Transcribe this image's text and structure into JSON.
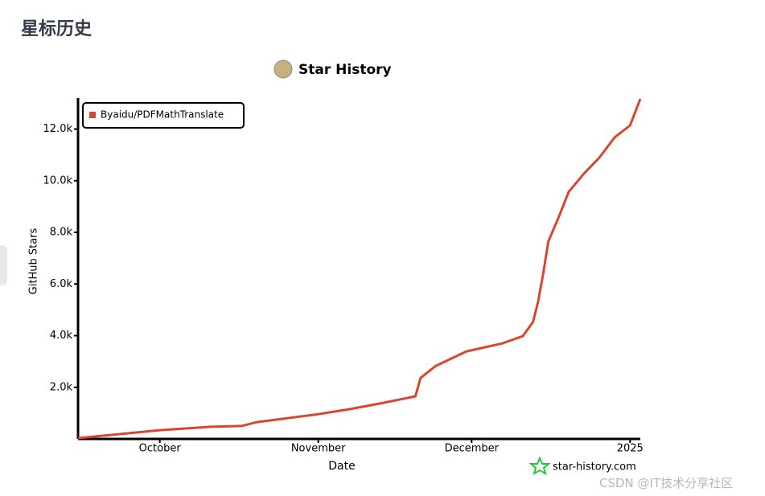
{
  "page_title": "星标历史",
  "watermark": "CSDN @IT技术分享社区",
  "chart_data": {
    "type": "line",
    "title": "Star History",
    "xlabel": "Date",
    "ylabel": "GitHub Stars",
    "credit": "star-history.com",
    "x": [
      "2024-09-15",
      "2024-10-01",
      "2024-10-11",
      "2024-10-17",
      "2024-10-20",
      "2024-11-01",
      "2024-11-07",
      "2024-11-13",
      "2024-11-20",
      "2024-11-21",
      "2024-11-24",
      "2024-11-30",
      "2024-12-07",
      "2024-12-11",
      "2024-12-13",
      "2024-12-14",
      "2024-12-15",
      "2024-12-16",
      "2024-12-18",
      "2024-12-20",
      "2024-12-23",
      "2024-12-26",
      "2024-12-29",
      "2025-01-01",
      "2025-01-03"
    ],
    "series": [
      {
        "name": "Byaidu/PDFMathTranslate",
        "color": "#d9462d",
        "values": [
          30,
          340,
          470,
          500,
          650,
          960,
          1150,
          1370,
          1650,
          2360,
          2830,
          3390,
          3700,
          3980,
          4530,
          5310,
          6400,
          7640,
          8570,
          9570,
          10280,
          10900,
          11680,
          12140,
          13170
        ]
      }
    ],
    "xlim": [
      "2024-09-15",
      "2025-01-03"
    ],
    "xticks": [
      {
        "value": "2024-10-01",
        "label": "October"
      },
      {
        "value": "2024-11-01",
        "label": "November"
      },
      {
        "value": "2024-12-01",
        "label": "December"
      },
      {
        "value": "2025-01-01",
        "label": "2025"
      }
    ],
    "ylim": [
      0,
      13200
    ],
    "yticks": [
      {
        "value": 2000,
        "label": "2.0k"
      },
      {
        "value": 4000,
        "label": "4.0k"
      },
      {
        "value": 6000,
        "label": "6.0k"
      },
      {
        "value": 8000,
        "label": "8.0k"
      },
      {
        "value": 10000,
        "label": "10.0k"
      },
      {
        "value": 12000,
        "label": "12.0k"
      }
    ],
    "legend": "upper left"
  }
}
